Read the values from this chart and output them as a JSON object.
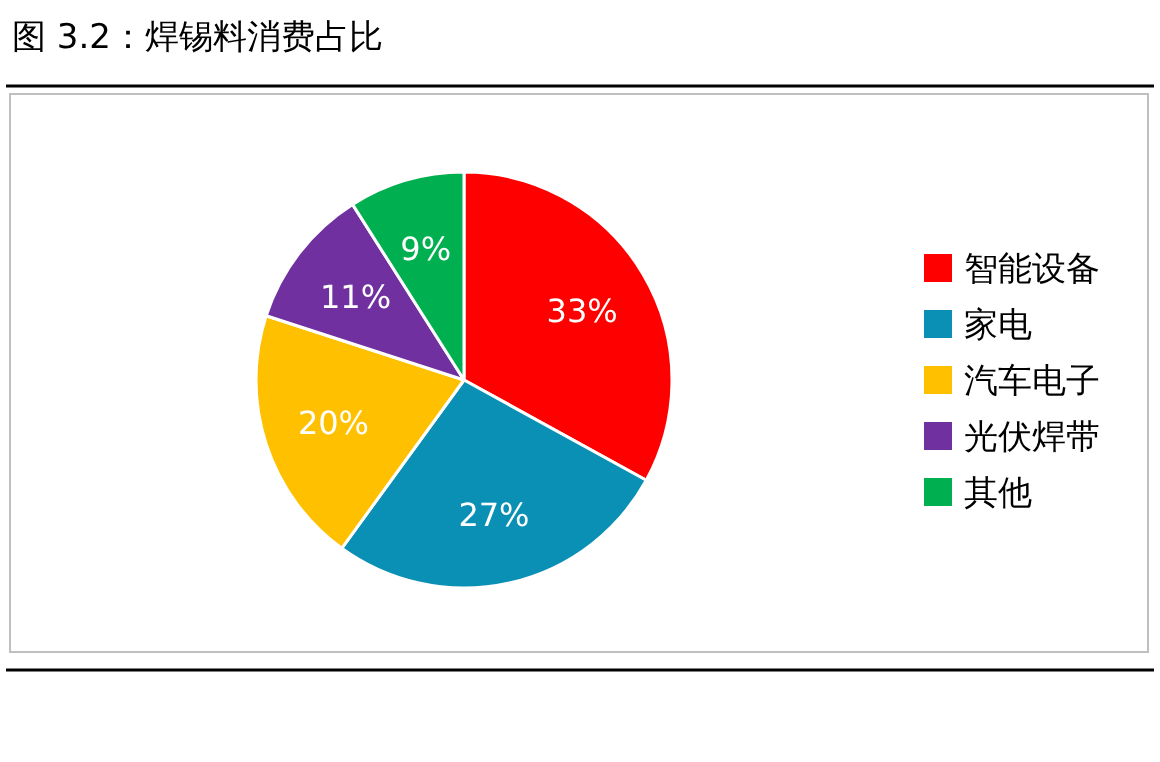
{
  "chart_data": {
    "type": "pie",
    "title": "图 3.2：焊锡料消费占比",
    "categories": [
      "智能设备",
      "家电",
      "汽车电子",
      "光伏焊带",
      "其他"
    ],
    "values": [
      33,
      27,
      20,
      11,
      9
    ],
    "value_labels": [
      "33%",
      "27%",
      "20%",
      "11%",
      "9%"
    ],
    "colors": [
      "#ff0000",
      "#0a8fb5",
      "#ffc000",
      "#7030a0",
      "#00b050"
    ],
    "legend": "right"
  }
}
